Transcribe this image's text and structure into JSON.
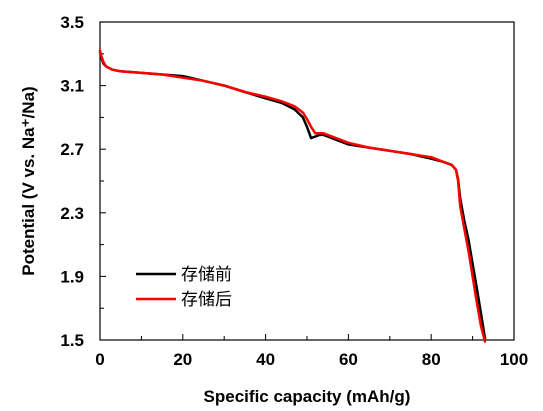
{
  "chart_data": {
    "type": "line",
    "xlabel": "Specific capacity (mAh/g)",
    "ylabel": "Potential (V vs. Na⁺/Na)",
    "xlim": [
      0,
      100
    ],
    "ylim": [
      1.5,
      3.5
    ],
    "xticks": [
      "0",
      "20",
      "40",
      "60",
      "80",
      "100"
    ],
    "yticks": [
      "1.5",
      "1.9",
      "2.3",
      "2.7",
      "3.1",
      "3.5"
    ],
    "legend_position": "bottom-left",
    "series": [
      {
        "name": "存储前",
        "color": "#000000",
        "x": [
          0,
          0.3,
          0.8,
          1.5,
          3,
          5,
          10,
          15,
          20,
          25,
          30,
          35,
          40,
          44,
          47,
          49,
          50,
          51,
          52,
          53,
          54,
          55,
          57,
          60,
          65,
          70,
          75,
          80,
          83,
          85,
          86,
          86.5,
          87,
          88,
          89,
          90,
          91,
          92,
          93
        ],
        "y": [
          3.31,
          3.28,
          3.24,
          3.22,
          3.2,
          3.19,
          3.18,
          3.17,
          3.16,
          3.13,
          3.1,
          3.06,
          3.02,
          2.99,
          2.95,
          2.9,
          2.84,
          2.77,
          2.78,
          2.79,
          2.79,
          2.78,
          2.76,
          2.73,
          2.71,
          2.69,
          2.67,
          2.64,
          2.62,
          2.6,
          2.57,
          2.51,
          2.39,
          2.25,
          2.13,
          1.98,
          1.83,
          1.67,
          1.51
        ]
      },
      {
        "name": "存储后",
        "color": "#ff0000",
        "x": [
          0,
          0.3,
          0.8,
          1.5,
          3,
          5,
          10,
          15,
          20,
          25,
          30,
          35,
          40,
          44,
          47,
          49,
          50,
          51,
          52,
          53,
          54,
          55,
          57,
          60,
          65,
          70,
          75,
          80,
          83,
          85,
          86,
          86.5,
          87,
          88,
          89,
          90,
          91,
          92,
          93
        ],
        "y": [
          3.32,
          3.29,
          3.25,
          3.22,
          3.2,
          3.19,
          3.18,
          3.17,
          3.15,
          3.13,
          3.1,
          3.06,
          3.03,
          3.0,
          2.97,
          2.93,
          2.89,
          2.84,
          2.8,
          2.8,
          2.8,
          2.79,
          2.77,
          2.74,
          2.71,
          2.69,
          2.67,
          2.65,
          2.62,
          2.6,
          2.57,
          2.5,
          2.34,
          2.2,
          2.06,
          1.9,
          1.74,
          1.59,
          1.49
        ]
      }
    ]
  }
}
